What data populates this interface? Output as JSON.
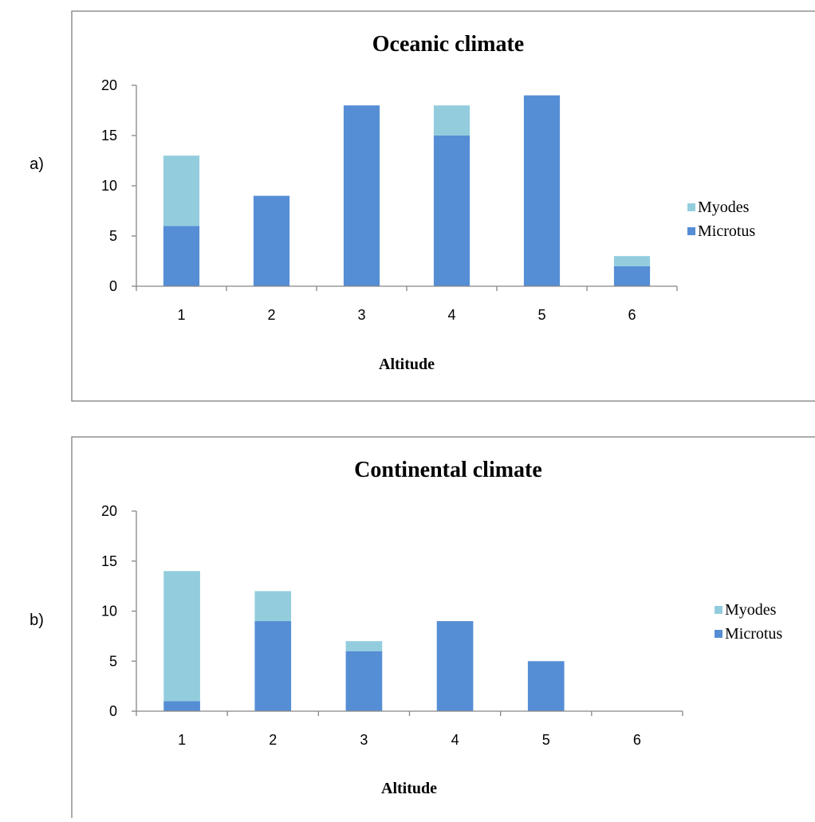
{
  "chart_data": [
    {
      "panel_label": "a)",
      "type": "bar",
      "stacked": true,
      "title": "Oceanic climate",
      "xlabel": "Altitude",
      "ylabel": "",
      "categories": [
        "1",
        "2",
        "3",
        "4",
        "5",
        "6"
      ],
      "ylim": [
        0,
        20
      ],
      "yticks": [
        0,
        5,
        10,
        15,
        20
      ],
      "series": [
        {
          "name": "Microtus",
          "color": "#558ED5",
          "values": [
            6,
            9,
            18,
            15,
            19,
            2
          ]
        },
        {
          "name": "Myodes",
          "color": "#93CDDD",
          "values": [
            7,
            0,
            0,
            3,
            0,
            1
          ]
        }
      ],
      "legend": {
        "position": "right",
        "order": [
          "Myodes",
          "Microtus"
        ]
      },
      "grid": false
    },
    {
      "panel_label": "b)",
      "type": "bar",
      "stacked": true,
      "title": "Continental climate",
      "xlabel": "Altitude",
      "ylabel": "",
      "categories": [
        "1",
        "2",
        "3",
        "4",
        "5",
        "6"
      ],
      "ylim": [
        0,
        20
      ],
      "yticks": [
        0,
        5,
        10,
        15,
        20
      ],
      "series": [
        {
          "name": "Microtus",
          "color": "#558ED5",
          "values": [
            1,
            9,
            6,
            9,
            5,
            0
          ]
        },
        {
          "name": "Myodes",
          "color": "#93CDDD",
          "values": [
            13,
            3,
            1,
            0,
            0,
            0
          ]
        }
      ],
      "legend": {
        "position": "right",
        "order": [
          "Myodes",
          "Microtus"
        ]
      },
      "grid": false
    }
  ]
}
